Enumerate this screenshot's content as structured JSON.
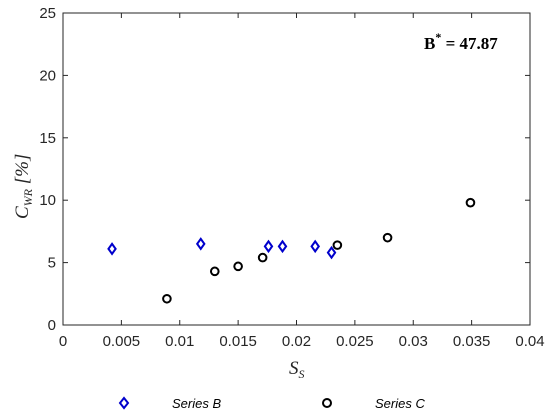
{
  "chart_data": {
    "type": "scatter",
    "xlabel": {
      "main": "S",
      "sub": "S"
    },
    "ylabel": {
      "main": "C",
      "sub": "WR",
      "suffix": " [%]"
    },
    "xlim": [
      0,
      0.04
    ],
    "ylim": [
      0,
      25
    ],
    "x_ticks": [
      "0",
      "0.005",
      "0.01",
      "0.015",
      "0.02",
      "0.025",
      "0.03",
      "0.035",
      "0.04"
    ],
    "y_ticks": [
      "0",
      "5",
      "10",
      "15",
      "20",
      "25"
    ],
    "grid": false,
    "legend_position": "bottom",
    "annotation": {
      "base": "B",
      "sup": "*",
      "text": " = 47.87"
    },
    "series": [
      {
        "name": "Series B",
        "marker": "diamond",
        "color": "#0000cc",
        "points": [
          [
            0.0042,
            6.1
          ],
          [
            0.0118,
            6.5
          ],
          [
            0.0176,
            6.3
          ],
          [
            0.0188,
            6.3
          ],
          [
            0.0216,
            6.3
          ],
          [
            0.023,
            5.8
          ]
        ]
      },
      {
        "name": "Series C",
        "marker": "circle",
        "color": "#000000",
        "points": [
          [
            0.0089,
            2.1
          ],
          [
            0.013,
            4.3
          ],
          [
            0.015,
            4.7
          ],
          [
            0.0171,
            5.4
          ],
          [
            0.0235,
            6.4
          ],
          [
            0.0278,
            7.0
          ],
          [
            0.0349,
            9.8
          ]
        ]
      }
    ]
  }
}
